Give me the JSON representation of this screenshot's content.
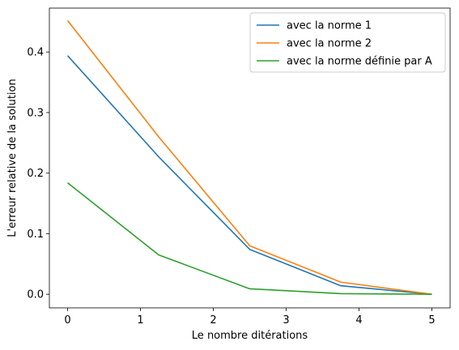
{
  "chart_data": {
    "type": "line",
    "title": "",
    "xlabel": "Le nombre ditérations",
    "ylabel": "L'erreur relative de la solution",
    "xlim": [
      -0.25,
      5.25
    ],
    "ylim": [
      -0.0225,
      0.4725
    ],
    "x_ticks": [
      0,
      1,
      2,
      3,
      4,
      5
    ],
    "x_tick_labels": [
      "0",
      "1",
      "2",
      "3",
      "4",
      "5"
    ],
    "y_ticks": [
      0.0,
      0.1,
      0.2,
      0.3,
      0.4
    ],
    "y_tick_labels": [
      "0.0",
      "0.1",
      "0.2",
      "0.3",
      "0.4"
    ],
    "grid": false,
    "legend_position": "top-right",
    "x": [
      0,
      1.25,
      2.5,
      3.75,
      5
    ],
    "series": [
      {
        "name": "avec la norme 1",
        "color": "#1f77b4",
        "values": [
          0.394,
          0.227,
          0.074,
          0.014,
          0.0
        ]
      },
      {
        "name": "avec la norme 2",
        "color": "#ff7f0e",
        "values": [
          0.452,
          0.26,
          0.08,
          0.02,
          0.0
        ]
      },
      {
        "name": "avec la norme définie par A",
        "color": "#2ca02c",
        "values": [
          0.184,
          0.065,
          0.009,
          0.001,
          0.0
        ]
      }
    ]
  }
}
